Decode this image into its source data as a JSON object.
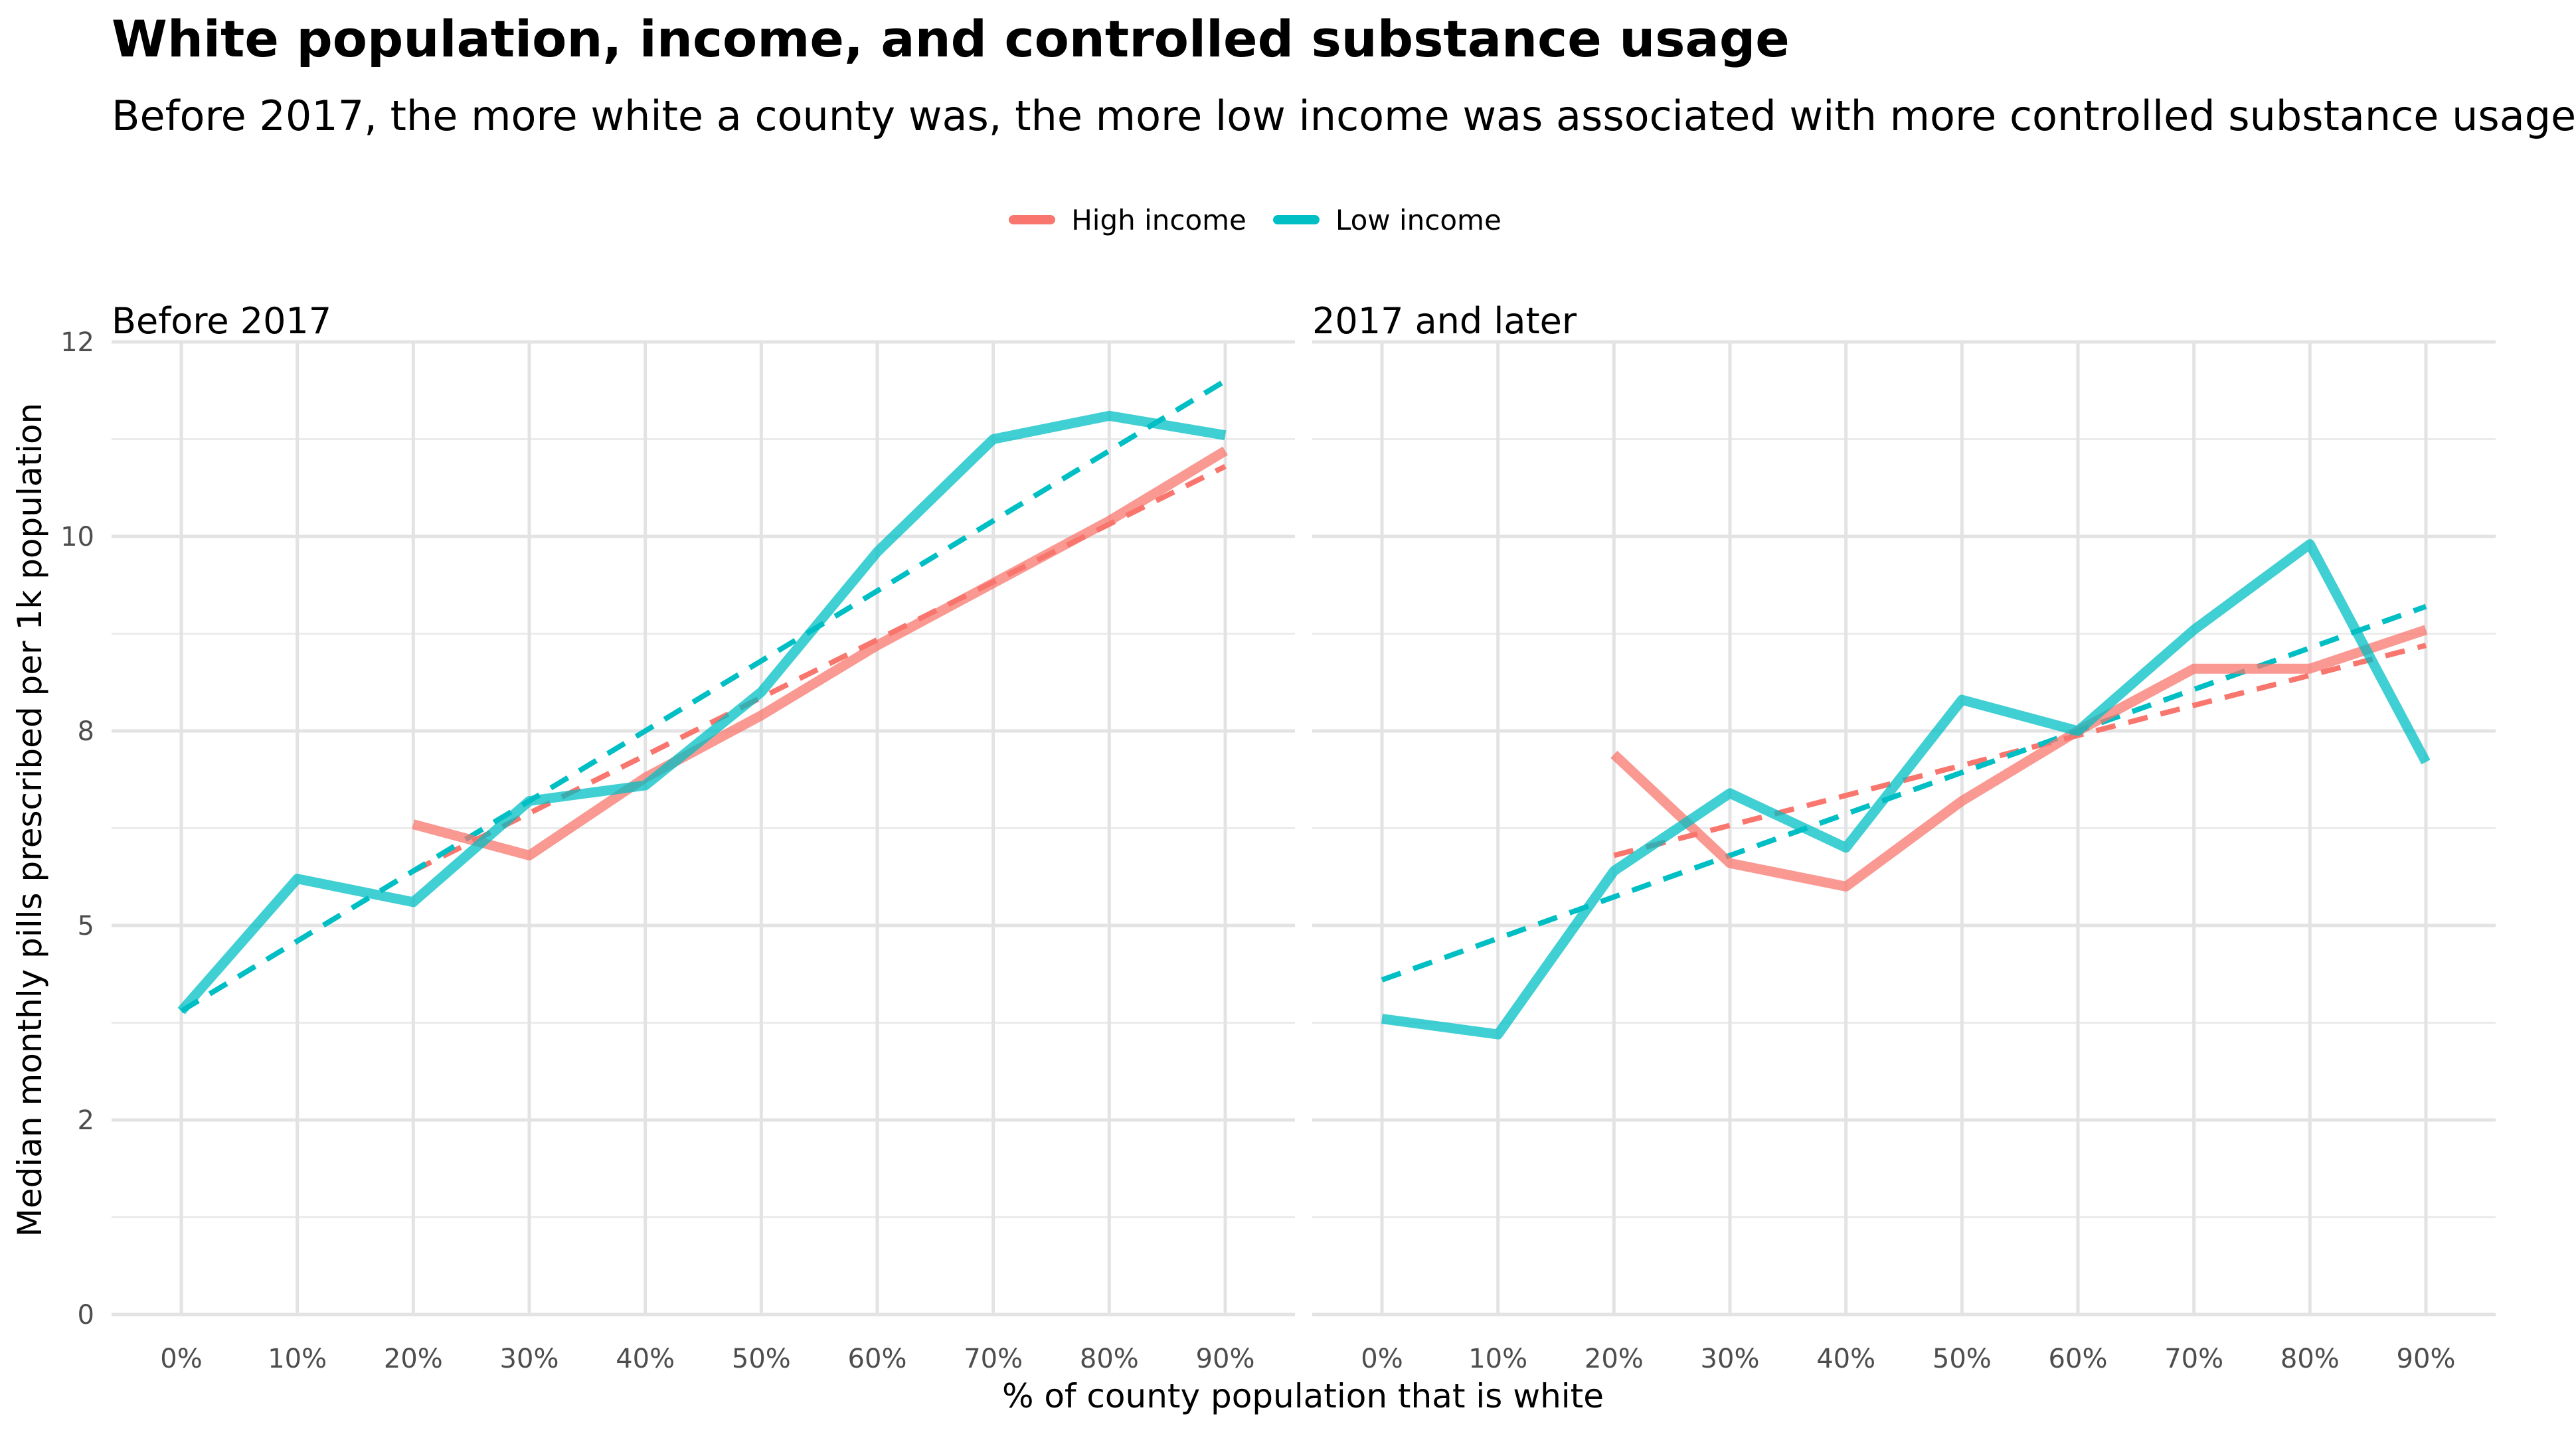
{
  "title": "White population, income, and controlled substance usage",
  "subtitle": "Before 2017, the more white a county was, the more low income was associated with more controlled substance usage",
  "legend": {
    "items": [
      {
        "label": "High income",
        "color": "#F8766D"
      },
      {
        "label": "Low income",
        "color": "#00BFC4"
      }
    ]
  },
  "chart_data": {
    "type": "line",
    "xlabel": "% of county population that is white",
    "ylabel": "Median monthly pills prescribed per 1k population",
    "x_tick_labels": [
      "0%",
      "10%",
      "20%",
      "30%",
      "40%",
      "50%",
      "60%",
      "70%",
      "80%",
      "90%"
    ],
    "y_ticks": [
      0,
      2.5,
      5,
      7.5,
      10,
      12.5
    ],
    "y_tick_labels": [
      "0",
      "2",
      "5",
      "8",
      "10",
      "12"
    ],
    "ylim": [
      0,
      12.5
    ],
    "grid": true,
    "legend_position": "top",
    "line_styles": {
      "observed": "solid",
      "trend": "dashed"
    },
    "facets": [
      {
        "title": "Before 2017",
        "series": [
          {
            "name": "High income",
            "color": "#F8766D",
            "x": [
              20,
              30,
              40,
              50,
              60,
              70,
              80,
              90
            ],
            "values": [
              6.3,
              5.9,
              6.9,
              7.7,
              8.6,
              9.4,
              10.2,
              11.1
            ],
            "trend": [
              [
                20,
                5.7
              ],
              [
                90,
                10.9
              ]
            ]
          },
          {
            "name": "Low income",
            "color": "#00BFC4",
            "x": [
              0,
              10,
              20,
              30,
              40,
              50,
              60,
              70,
              80,
              90
            ],
            "values": [
              3.9,
              5.6,
              5.3,
              6.6,
              6.8,
              8.0,
              9.8,
              11.25,
              11.55,
              11.3
            ],
            "trend": [
              [
                0,
                3.9
              ],
              [
                90,
                12.0
              ]
            ]
          }
        ]
      },
      {
        "title": "2017 and later",
        "series": [
          {
            "name": "High income",
            "color": "#F8766D",
            "x": [
              20,
              30,
              40,
              50,
              60,
              70,
              80,
              90
            ],
            "values": [
              7.2,
              5.8,
              5.5,
              6.6,
              7.5,
              8.3,
              8.3,
              8.8
            ],
            "trend": [
              [
                20,
                5.9
              ],
              [
                90,
                8.6
              ]
            ]
          },
          {
            "name": "Low income",
            "color": "#00BFC4",
            "x": [
              0,
              10,
              20,
              30,
              40,
              50,
              60,
              70,
              80,
              90
            ],
            "values": [
              3.8,
              3.6,
              5.7,
              6.7,
              6.0,
              7.9,
              7.5,
              8.8,
              9.9,
              7.1
            ],
            "trend": [
              [
                0,
                4.3
              ],
              [
                90,
                9.1
              ]
            ]
          }
        ]
      }
    ]
  }
}
